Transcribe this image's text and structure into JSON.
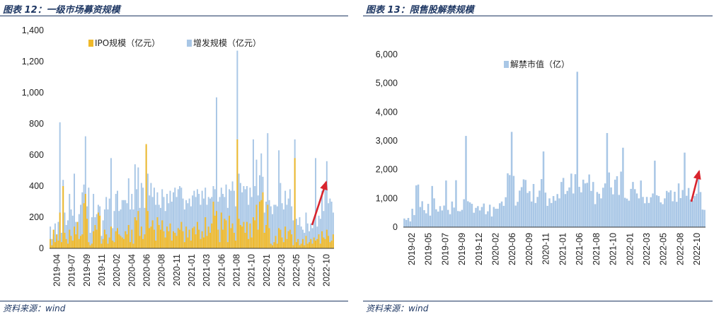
{
  "left": {
    "title": "图表 12：一级市场募资规模",
    "source": "资料来源：wind"
  },
  "right": {
    "title": "图表 13：限售股解禁规模",
    "source": "资料来源：wind"
  },
  "colors": {
    "ipo": "#f0b929",
    "sec": "#a9c7e6",
    "lift": "#a9c7e6",
    "arrow": "#d9242d",
    "rule": "#1f3864"
  },
  "chart_data": [
    {
      "type": "bar",
      "stacked": "overlay",
      "ylim": [
        0,
        1400
      ],
      "yticks": [
        "0",
        "200",
        "400",
        "600",
        "800",
        "1,000",
        "1,200",
        "1,400"
      ],
      "xticks": [
        "2019-04",
        "2019-07",
        "2019-09",
        "2019-11",
        "2020-02",
        "2020-04",
        "2020-06",
        "2020-08",
        "2020-11",
        "2021-01",
        "2021-03",
        "2021-06",
        "2021-08",
        "2021-10",
        "2022-01",
        "2022-03",
        "2022-05",
        "2022-07",
        "2022-10"
      ],
      "legend_position": "top",
      "series": [
        {
          "name": "IPO规模（亿元）",
          "values": [
            60,
            20,
            120,
            40,
            90,
            50,
            230,
            40,
            400,
            100,
            60,
            30,
            120,
            80,
            50,
            140,
            90,
            170,
            60,
            80,
            90,
            290,
            350,
            190,
            40,
            20,
            30,
            110,
            150,
            120,
            230,
            210,
            30,
            60,
            120,
            90,
            30,
            70,
            140,
            50,
            40,
            110,
            130,
            90,
            80,
            70,
            60,
            110,
            90,
            150,
            40,
            120,
            30,
            200,
            180,
            240,
            80,
            140,
            60,
            90,
            670,
            240,
            130,
            140,
            180,
            120,
            50,
            200,
            150,
            120,
            180,
            110,
            70,
            140,
            110,
            160,
            50,
            110,
            100,
            80,
            130,
            120,
            170,
            110,
            40,
            140,
            70,
            120,
            50,
            130,
            140,
            90,
            170,
            120,
            60,
            110,
            70,
            200,
            80,
            140,
            100,
            160,
            300,
            210,
            240,
            120,
            40,
            230,
            120,
            190,
            180,
            40,
            210,
            130,
            160,
            100,
            50,
            700,
            190,
            150,
            140,
            170,
            100,
            170,
            60,
            160,
            70,
            200,
            180,
            280,
            120,
            300,
            310,
            360,
            100,
            150,
            280,
            130,
            30,
            20,
            40,
            80,
            30,
            130,
            120,
            70,
            40,
            140,
            60,
            110,
            120,
            90,
            20,
            580,
            40,
            60,
            20,
            30,
            60,
            20,
            80,
            30,
            40,
            60,
            30,
            70,
            50,
            60,
            90,
            30,
            110,
            70,
            60,
            120,
            80,
            40,
            50,
            90
          ]
        },
        {
          "name": "增发规模（亿元）",
          "values": [
            140,
            60,
            90,
            160,
            60,
            170,
            810,
            100,
            440,
            230,
            150,
            180,
            350,
            250,
            210,
            480,
            170,
            120,
            220,
            280,
            360,
            410,
            720,
            270,
            390,
            100,
            200,
            350,
            200,
            220,
            280,
            270,
            80,
            180,
            250,
            330,
            250,
            320,
            580,
            130,
            240,
            350,
            370,
            240,
            250,
            310,
            310,
            310,
            290,
            450,
            250,
            350,
            250,
            540,
            380,
            520,
            260,
            420,
            390,
            260,
            660,
            480,
            340,
            420,
            330,
            390,
            280,
            360,
            280,
            260,
            380,
            330,
            240,
            350,
            290,
            370,
            300,
            360,
            390,
            330,
            380,
            400,
            390,
            320,
            250,
            310,
            290,
            320,
            270,
            340,
            370,
            330,
            380,
            350,
            280,
            370,
            320,
            390,
            280,
            330,
            320,
            330,
            400,
            380,
            970,
            300,
            330,
            390,
            350,
            330,
            410,
            260,
            380,
            370,
            430,
            370,
            270,
            1270,
            480,
            420,
            360,
            400,
            380,
            400,
            280,
            390,
            330,
            700,
            400,
            570,
            340,
            470,
            610,
            460,
            230,
            300,
            740,
            310,
            270,
            220,
            280,
            280,
            270,
            630,
            420,
            290,
            250,
            370,
            280,
            320,
            380,
            270,
            180,
            700,
            190,
            150,
            200,
            140,
            120,
            100,
            230,
            160,
            110,
            160,
            130,
            180,
            580,
            140,
            210,
            190,
            370,
            240,
            380,
            560,
            290,
            320,
            300,
            230
          ]
        }
      ]
    },
    {
      "type": "bar",
      "ylim": [
        0,
        6000
      ],
      "yticks": [
        "0",
        "1,000",
        "2,000",
        "3,000",
        "4,000",
        "5,000",
        "6,000"
      ],
      "xticks": [
        "2019-02",
        "2019-05",
        "2019-07",
        "2019-09",
        "2019-12",
        "2020-02",
        "2020-06",
        "2020-09",
        "2020-11",
        "2021-01",
        "2021-06",
        "2021-08",
        "2021-10",
        "2022-01",
        "2022-03",
        "2022-05",
        "2022-08",
        "2022-10"
      ],
      "legend_position": "top",
      "series": [
        {
          "name": "解禁市值（亿）",
          "values": [
            300,
            250,
            320,
            200,
            640,
            420,
            1450,
            1480,
            700,
            900,
            590,
            480,
            810,
            400,
            1430,
            1000,
            620,
            540,
            730,
            580,
            750,
            1620,
            600,
            450,
            890,
            680,
            1630,
            560,
            550,
            600,
            970,
            3170,
            900,
            860,
            810,
            500,
            670,
            730,
            580,
            700,
            820,
            450,
            550,
            780,
            370,
            700,
            640,
            640,
            830,
            890,
            740,
            1040,
            1870,
            1810,
            3310,
            1780,
            750,
            880,
            1270,
            1390,
            1660,
            1640,
            1190,
            1250,
            890,
            1500,
            840,
            1050,
            1270,
            1670,
            2630,
            1200,
            740,
            1000,
            840,
            1080,
            920,
            1150,
            1000,
            1570,
            1710,
            1150,
            1260,
            1380,
            1860,
            1170,
            1840,
            5400,
            1400,
            1210,
            1650,
            1520,
            1540,
            1830,
            1260,
            1570,
            800,
            1220,
            1160,
            1000,
            1370,
            1520,
            3270,
            1900,
            1380,
            1140,
            1650,
            1770,
            1120,
            1930,
            2760,
            1020,
            990,
            920,
            1330,
            1570,
            1320,
            1170,
            1000,
            1620,
            1050,
            830,
            1050,
            840,
            1040,
            1170,
            2310,
            1110,
            1080,
            860,
            800,
            1000,
            1260,
            1210,
            1280,
            900,
            1230,
            880,
            1520,
            1010,
            1290,
            2590,
            1090,
            1360,
            960,
            930,
            1080,
            1160,
            1900,
            1220,
            610,
            600
          ]
        }
      ]
    }
  ]
}
